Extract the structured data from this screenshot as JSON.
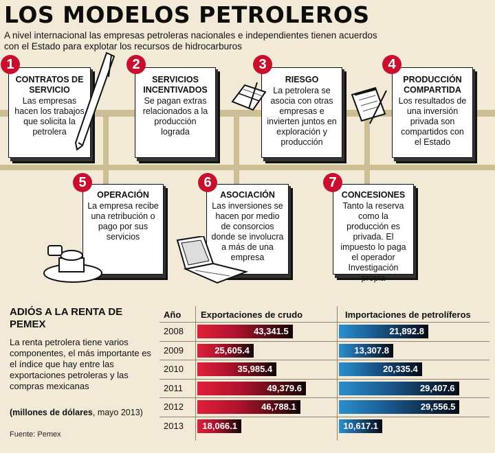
{
  "title": "LOS MODELOS PETROLEROS",
  "subtitle": "A nivel internacional las empresas petroleras nacionales e independientes tienen acuerdos con el Estado para explotar los recursos de hidrocarburos",
  "cards": [
    {
      "num": "1",
      "title": "CONTRATOS DE SERVICIO",
      "text": "Las empresas hacen los trabajos que solicita la petrolera",
      "icon": "pen-icon"
    },
    {
      "num": "2",
      "title": "SERVICIOS INCENTIVADOS",
      "text": "Se pagan extras relacionados a la producción lograda",
      "icon": ""
    },
    {
      "num": "3",
      "title": "RIESGO",
      "text": "La petrolera se asocia con otras empresas e invierten juntos en exploración y producción",
      "icon": "notebook-icon"
    },
    {
      "num": "4",
      "title": "PRODUCCIÓN COMPARTIDA",
      "text": "Los resultados de una inversión privada son compartidos con el Estado",
      "icon": "notepad-icon"
    },
    {
      "num": "5",
      "title": "OPERACIÓN",
      "text": "La empresa recibe una retribución o pago por sus servicios",
      "icon": "stamp-icon"
    },
    {
      "num": "6",
      "title": "ASOCIACIÓN",
      "text": "Las inversiones se hacen por medio de consorcios donde se involucra a más de una empresa",
      "icon": "laptop-icon"
    },
    {
      "num": "7",
      "title": "CONCESIONES",
      "text": "Tanto la reserva como la producción es privada. El impuesto lo paga el operador Investigación propia",
      "icon": ""
    }
  ],
  "intro": {
    "title": "ADIÓS A LA RENTA DE PEMEX",
    "text": "La renta petrolera tiene varios componentes, el más importante es el índice que hay entre las exportaciones petroleras y las compras mexicanas",
    "unit_bold": "(millones de dólares",
    "unit_rest": ", mayo 2013)",
    "source": "Fuente: Pemex"
  },
  "colors": {
    "red": "#c8102e",
    "blue": "#1f74b0",
    "background": "#f2ead7",
    "rail": "#cdbf95"
  },
  "chart_data": {
    "type": "bar",
    "headers": {
      "year": "Año",
      "exports": "Exportaciones de crudo",
      "imports": "Importaciones de petrolíferos"
    },
    "categories": [
      "2008",
      "2009",
      "2010",
      "2011",
      "2012",
      "2013"
    ],
    "series": [
      {
        "name": "Exportaciones de crudo",
        "values": [
          43341.5,
          25605.4,
          35985.4,
          49379.6,
          46788.1,
          18066.1
        ],
        "labels": [
          "43,341.5",
          "25,605.4",
          "35,985.4",
          "49,379.6",
          "46,788.1",
          "18,066.1"
        ],
        "color": "#c8102e"
      },
      {
        "name": "Importaciones de petrolíferos",
        "values": [
          21892.8,
          13307.8,
          20335.4,
          29407.6,
          29556.5,
          10617.1
        ],
        "labels": [
          "21,892.8",
          "13,307.8",
          "20,335.4",
          "29,407.6",
          "29,556.5",
          "10,617.1"
        ],
        "color": "#1f74b0"
      }
    ]
  }
}
